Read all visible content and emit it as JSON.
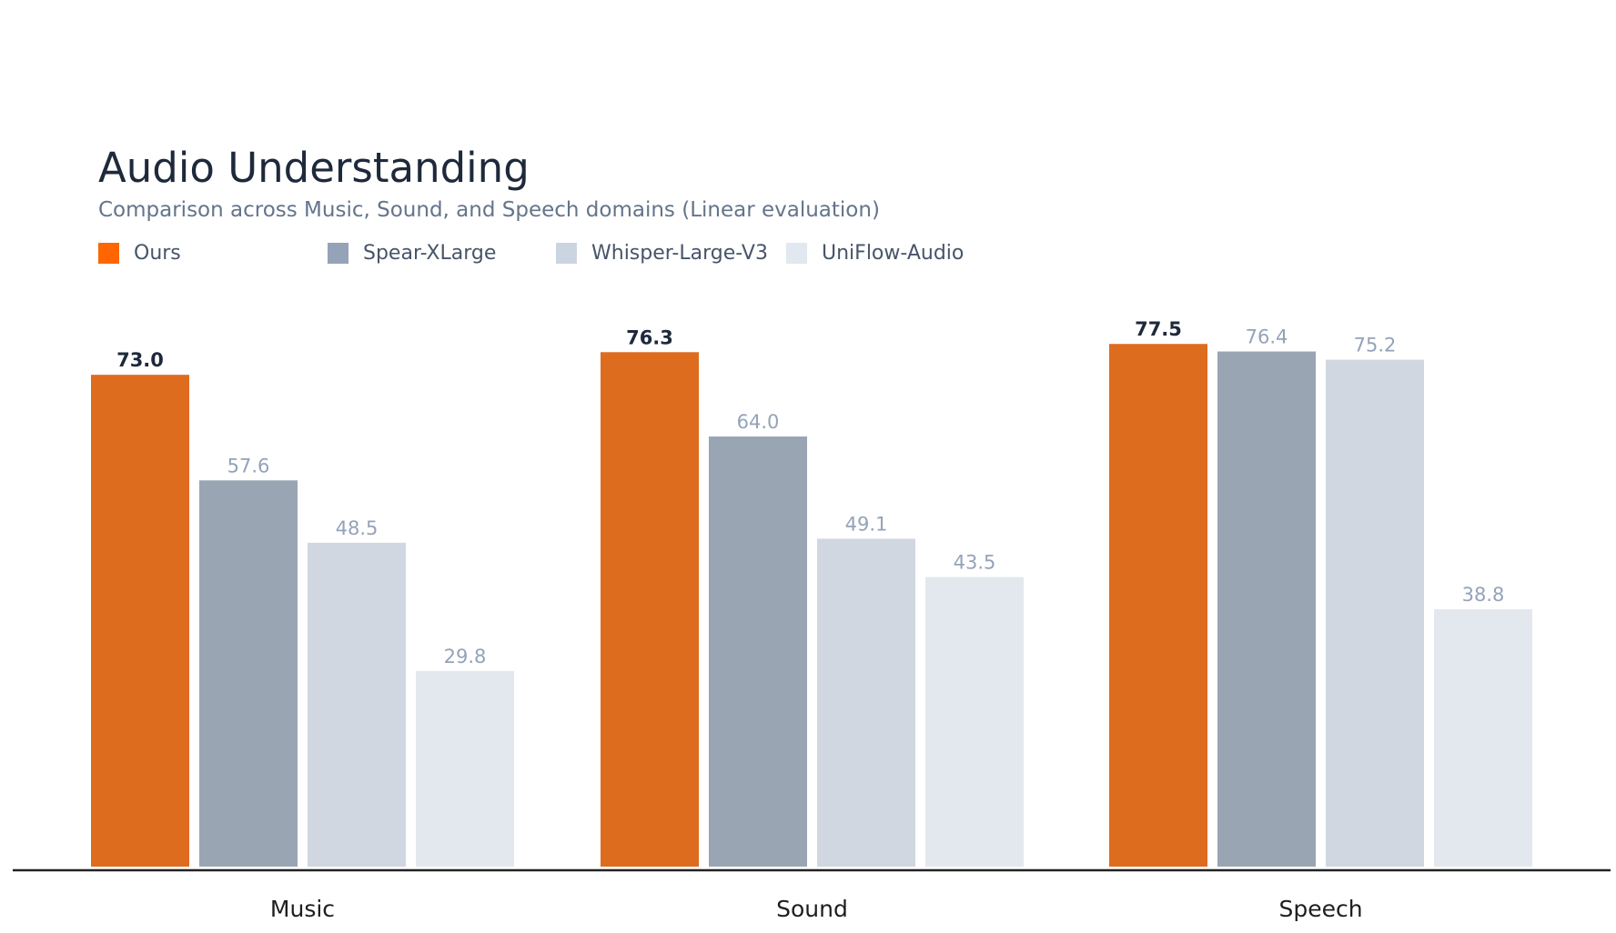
{
  "chart_data": {
    "type": "bar",
    "title": "Audio Understanding",
    "subtitle": "Comparison across Music, Sound, and Speech domains (Linear evaluation)",
    "categories": [
      "Music",
      "Sound",
      "Speech"
    ],
    "series": [
      {
        "name": "Ours",
        "values": [
          73.0,
          76.3,
          77.5
        ],
        "color": "#de6c1f",
        "legend_color": "#ff6600",
        "label_color": "#1e293b",
        "label_bold": true
      },
      {
        "name": "Spear-XLarge",
        "values": [
          57.6,
          64.0,
          76.4
        ],
        "color": "#9aa5b4",
        "legend_color": "#94a3b8",
        "label_color": "#94a3b8",
        "label_bold": false
      },
      {
        "name": "Whisper-Large-V3",
        "values": [
          48.5,
          49.1,
          75.2
        ],
        "color": "#d0d7e0",
        "legend_color": "#cbd5e1",
        "label_color": "#94a3b8",
        "label_bold": false
      },
      {
        "name": "UniFlow-Audio",
        "values": [
          29.8,
          43.5,
          38.8
        ],
        "color": "#e3e8ef",
        "legend_color": "#e2e8f0",
        "label_color": "#94a3b8",
        "label_bold": false
      }
    ],
    "xlabel": "",
    "ylabel": "",
    "grid": false,
    "y_axis_visible": false,
    "legend_placement": "top-left",
    "value_format": "one decimal"
  }
}
